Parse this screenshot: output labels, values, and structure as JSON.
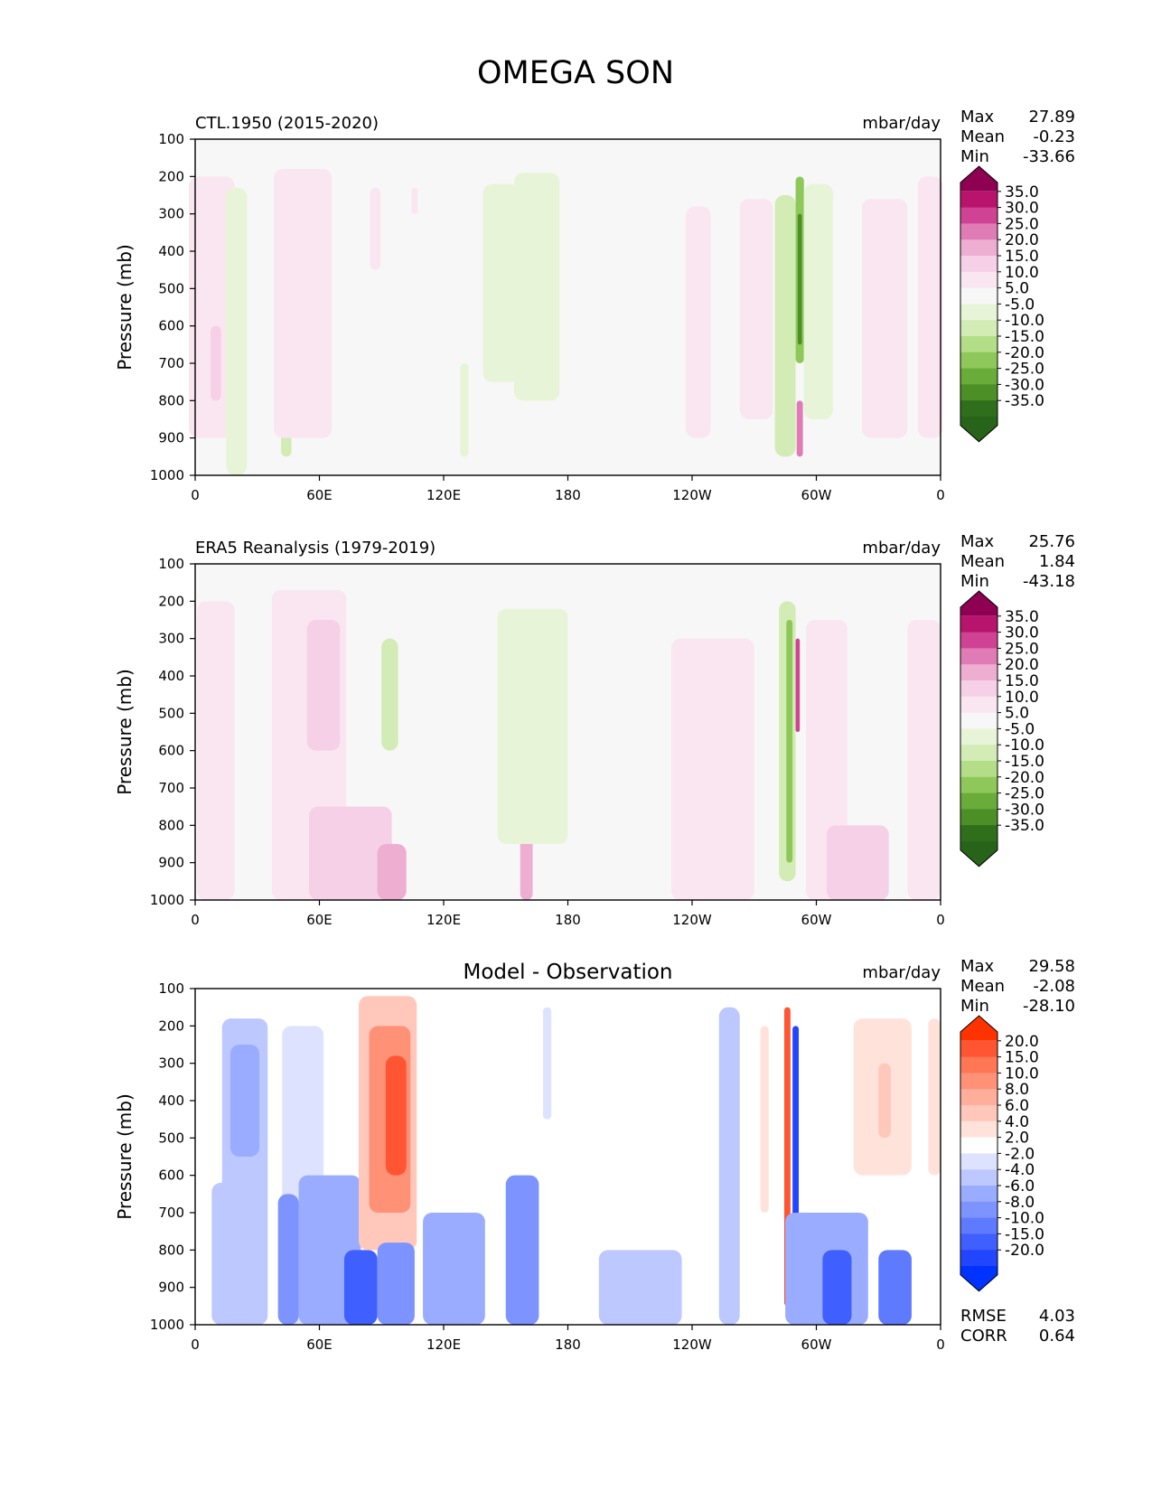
{
  "figure_title": "OMEGA SON",
  "chart_data": [
    {
      "type": "heatmap",
      "title": "CTL.1950 (2015-2020)",
      "title_position": "left",
      "units": "mbar/day",
      "xlabel": "",
      "ylabel": "Pressure (mb)",
      "x_ticks": [
        "0",
        "60E",
        "120E",
        "180",
        "120W",
        "60W",
        "0"
      ],
      "y_ticks": [
        "100",
        "200",
        "300",
        "400",
        "500",
        "600",
        "700",
        "800",
        "900",
        "1000"
      ],
      "xlim": [
        0,
        360
      ],
      "ylim": [
        1000,
        100
      ],
      "stats": [
        {
          "label": "Max",
          "value": "27.89"
        },
        {
          "label": "Mean",
          "value": "-0.23"
        },
        {
          "label": "Min",
          "value": "-33.66"
        }
      ],
      "colorbar": {
        "labels": [
          "35.0",
          "30.0",
          "25.0",
          "20.0",
          "15.0",
          "10.0",
          "5.0",
          "-5.0",
          "-10.0",
          "-15.0",
          "-20.0",
          "-25.0",
          "-30.0",
          "-35.0"
        ],
        "colors": [
          "#8e0152",
          "#b8146e",
          "#d04394",
          "#e07cb5",
          "#eeaed2",
          "#f6d0e6",
          "#fae6f0",
          "#f7f7f7",
          "#e8f4d8",
          "#d3ebb4",
          "#b3dd87",
          "#8ec85a",
          "#6aac3a",
          "#4b8f26",
          "#2f6e1a",
          "#276419"
        ]
      },
      "features": [
        {
          "kind": "pos",
          "lon": 8,
          "width": 22,
          "top": 200,
          "bottom": 900,
          "level": 1
        },
        {
          "kind": "pos",
          "lon": 10,
          "width": 5,
          "top": 600,
          "bottom": 800,
          "level": 2
        },
        {
          "kind": "neg",
          "lon": 20,
          "width": 10,
          "top": 230,
          "bottom": 1000,
          "level": 1
        },
        {
          "kind": "neg",
          "lon": 44,
          "width": 5,
          "top": 800,
          "bottom": 950,
          "level": 2
        },
        {
          "kind": "pos",
          "lon": 52,
          "width": 28,
          "top": 180,
          "bottom": 900,
          "level": 1
        },
        {
          "kind": "pos",
          "lon": 87,
          "width": 5,
          "top": 230,
          "bottom": 450,
          "level": 1
        },
        {
          "kind": "pos",
          "lon": 106,
          "width": 3,
          "top": 230,
          "bottom": 300,
          "level": 1
        },
        {
          "kind": "neg",
          "lon": 148,
          "width": 18,
          "top": 220,
          "bottom": 750,
          "level": 1
        },
        {
          "kind": "neg",
          "lon": 165,
          "width": 22,
          "top": 190,
          "bottom": 800,
          "level": 1
        },
        {
          "kind": "neg",
          "lon": 130,
          "width": 4,
          "top": 700,
          "bottom": 950,
          "level": 1
        },
        {
          "kind": "pos",
          "lon": 243,
          "width": 12,
          "top": 280,
          "bottom": 900,
          "level": 1
        },
        {
          "kind": "pos",
          "lon": 271,
          "width": 16,
          "top": 260,
          "bottom": 850,
          "level": 1
        },
        {
          "kind": "neg",
          "lon": 285,
          "width": 10,
          "top": 250,
          "bottom": 950,
          "level": 2
        },
        {
          "kind": "neg",
          "lon": 292,
          "width": 4,
          "top": 200,
          "bottom": 700,
          "level": 4
        },
        {
          "kind": "neg",
          "lon": 292,
          "width": 2,
          "top": 300,
          "bottom": 650,
          "level": 6
        },
        {
          "kind": "pos",
          "lon": 292,
          "width": 3,
          "top": 800,
          "bottom": 950,
          "level": 4
        },
        {
          "kind": "neg",
          "lon": 301,
          "width": 14,
          "top": 220,
          "bottom": 850,
          "level": 1
        },
        {
          "kind": "pos",
          "lon": 333,
          "width": 22,
          "top": 260,
          "bottom": 900,
          "level": 1
        },
        {
          "kind": "pos",
          "lon": 355,
          "width": 12,
          "top": 200,
          "bottom": 900,
          "level": 1
        }
      ]
    },
    {
      "type": "heatmap",
      "title": "ERA5 Reanalysis (1979-2019)",
      "title_position": "left",
      "units": "mbar/day",
      "xlabel": "",
      "ylabel": "Pressure (mb)",
      "x_ticks": [
        "0",
        "60E",
        "120E",
        "180",
        "120W",
        "60W",
        "0"
      ],
      "y_ticks": [
        "100",
        "200",
        "300",
        "400",
        "500",
        "600",
        "700",
        "800",
        "900",
        "1000"
      ],
      "xlim": [
        0,
        360
      ],
      "ylim": [
        1000,
        100
      ],
      "stats": [
        {
          "label": "Max",
          "value": "25.76"
        },
        {
          "label": "Mean",
          "value": "1.84"
        },
        {
          "label": "Min",
          "value": "-43.18"
        }
      ],
      "colorbar": {
        "labels": [
          "35.0",
          "30.0",
          "25.0",
          "20.0",
          "15.0",
          "10.0",
          "5.0",
          "-5.0",
          "-10.0",
          "-15.0",
          "-20.0",
          "-25.0",
          "-30.0",
          "-35.0"
        ],
        "colors": [
          "#8e0152",
          "#b8146e",
          "#d04394",
          "#e07cb5",
          "#eeaed2",
          "#f6d0e6",
          "#fae6f0",
          "#f7f7f7",
          "#e8f4d8",
          "#d3ebb4",
          "#b3dd87",
          "#8ec85a",
          "#6aac3a",
          "#4b8f26",
          "#2f6e1a",
          "#276419"
        ]
      },
      "features": [
        {
          "kind": "pos",
          "lon": 10,
          "width": 18,
          "top": 200,
          "bottom": 1000,
          "level": 1
        },
        {
          "kind": "pos",
          "lon": 55,
          "width": 36,
          "top": 170,
          "bottom": 1000,
          "level": 1
        },
        {
          "kind": "pos",
          "lon": 62,
          "width": 16,
          "top": 250,
          "bottom": 600,
          "level": 2
        },
        {
          "kind": "pos",
          "lon": 75,
          "width": 40,
          "top": 750,
          "bottom": 1000,
          "level": 2
        },
        {
          "kind": "pos",
          "lon": 95,
          "width": 14,
          "top": 850,
          "bottom": 1000,
          "level": 3
        },
        {
          "kind": "pos",
          "lon": 160,
          "width": 6,
          "top": 800,
          "bottom": 1000,
          "level": 3
        },
        {
          "kind": "neg",
          "lon": 94,
          "width": 8,
          "top": 300,
          "bottom": 600,
          "level": 2
        },
        {
          "kind": "neg",
          "lon": 163,
          "width": 34,
          "top": 220,
          "bottom": 850,
          "level": 1
        },
        {
          "kind": "pos",
          "lon": 250,
          "width": 40,
          "top": 300,
          "bottom": 1000,
          "level": 1
        },
        {
          "kind": "neg",
          "lon": 286,
          "width": 8,
          "top": 200,
          "bottom": 950,
          "level": 2
        },
        {
          "kind": "neg",
          "lon": 287,
          "width": 3,
          "top": 250,
          "bottom": 900,
          "level": 4
        },
        {
          "kind": "pos",
          "lon": 291,
          "width": 2,
          "top": 300,
          "bottom": 550,
          "level": 5
        },
        {
          "kind": "pos",
          "lon": 305,
          "width": 20,
          "top": 250,
          "bottom": 1000,
          "level": 1
        },
        {
          "kind": "pos",
          "lon": 320,
          "width": 30,
          "top": 800,
          "bottom": 1000,
          "level": 2
        },
        {
          "kind": "pos",
          "lon": 352,
          "width": 16,
          "top": 250,
          "bottom": 1000,
          "level": 1
        }
      ]
    },
    {
      "type": "heatmap",
      "title": "Model - Observation",
      "title_position": "center",
      "units": "mbar/day",
      "xlabel": "",
      "ylabel": "Pressure (mb)",
      "x_ticks": [
        "0",
        "60E",
        "120E",
        "180",
        "120W",
        "60W",
        "0"
      ],
      "y_ticks": [
        "100",
        "200",
        "300",
        "400",
        "500",
        "600",
        "700",
        "800",
        "900",
        "1000"
      ],
      "xlim": [
        0,
        360
      ],
      "ylim": [
        1000,
        100
      ],
      "stats": [
        {
          "label": "Max",
          "value": "29.58"
        },
        {
          "label": "Mean",
          "value": "-2.08"
        },
        {
          "label": "Min",
          "value": "-28.10"
        }
      ],
      "extra_stats": [
        {
          "label": "RMSE",
          "value": "4.03"
        },
        {
          "label": "CORR",
          "value": "0.64"
        }
      ],
      "colorbar": {
        "labels": [
          "20.0",
          "15.0",
          "10.0",
          "8.0",
          "6.0",
          "4.0",
          "2.0",
          "-2.0",
          "-4.0",
          "-6.0",
          "-8.0",
          "-10.0",
          "-15.0",
          "-20.0"
        ],
        "colors": [
          "#ff3300",
          "#ff5533",
          "#ff7755",
          "#ff9177",
          "#ffae9c",
          "#ffc8bb",
          "#ffe3db",
          "#ffffff",
          "#dde3ff",
          "#bcc8ff",
          "#9aacff",
          "#7d93ff",
          "#5e7aff",
          "#3f60ff",
          "#2246ff",
          "#0033ff"
        ]
      },
      "features": [
        {
          "kind": "neg",
          "lon": 14,
          "width": 12,
          "top": 620,
          "bottom": 1000,
          "level": 2
        },
        {
          "kind": "neg",
          "lon": 24,
          "width": 22,
          "top": 180,
          "bottom": 1000,
          "level": 2
        },
        {
          "kind": "neg",
          "lon": 24,
          "width": 14,
          "top": 250,
          "bottom": 550,
          "level": 3
        },
        {
          "kind": "neg",
          "lon": 52,
          "width": 20,
          "top": 200,
          "bottom": 1000,
          "level": 1
        },
        {
          "kind": "neg",
          "lon": 45,
          "width": 10,
          "top": 650,
          "bottom": 1000,
          "level": 4
        },
        {
          "kind": "neg",
          "lon": 65,
          "width": 30,
          "top": 600,
          "bottom": 1000,
          "level": 3
        },
        {
          "kind": "neg",
          "lon": 80,
          "width": 16,
          "top": 800,
          "bottom": 1000,
          "level": 6
        },
        {
          "kind": "pos",
          "lon": 93,
          "width": 28,
          "top": 120,
          "bottom": 800,
          "level": 2
        },
        {
          "kind": "pos",
          "lon": 94,
          "width": 20,
          "top": 200,
          "bottom": 700,
          "level": 4
        },
        {
          "kind": "pos",
          "lon": 97,
          "width": 10,
          "top": 280,
          "bottom": 600,
          "level": 6
        },
        {
          "kind": "neg",
          "lon": 97,
          "width": 18,
          "top": 780,
          "bottom": 1000,
          "level": 4
        },
        {
          "kind": "neg",
          "lon": 125,
          "width": 30,
          "top": 700,
          "bottom": 1000,
          "level": 3
        },
        {
          "kind": "neg",
          "lon": 158,
          "width": 16,
          "top": 600,
          "bottom": 1000,
          "level": 4
        },
        {
          "kind": "neg",
          "lon": 170,
          "width": 4,
          "top": 150,
          "bottom": 450,
          "level": 1
        },
        {
          "kind": "neg",
          "lon": 215,
          "width": 40,
          "top": 800,
          "bottom": 1000,
          "level": 2
        },
        {
          "kind": "neg",
          "lon": 258,
          "width": 10,
          "top": 150,
          "bottom": 1000,
          "level": 2
        },
        {
          "kind": "pos",
          "lon": 275,
          "width": 4,
          "top": 200,
          "bottom": 700,
          "level": 1
        },
        {
          "kind": "pos",
          "lon": 286,
          "width": 3,
          "top": 150,
          "bottom": 950,
          "level": 6
        },
        {
          "kind": "neg",
          "lon": 290,
          "width": 3,
          "top": 200,
          "bottom": 750,
          "level": 7
        },
        {
          "kind": "pos",
          "lon": 291,
          "width": 3,
          "top": 800,
          "bottom": 920,
          "level": 5
        },
        {
          "kind": "neg",
          "lon": 305,
          "width": 40,
          "top": 700,
          "bottom": 1000,
          "level": 3
        },
        {
          "kind": "neg",
          "lon": 310,
          "width": 14,
          "top": 800,
          "bottom": 1000,
          "level": 6
        },
        {
          "kind": "neg",
          "lon": 338,
          "width": 16,
          "top": 800,
          "bottom": 1000,
          "level": 5
        },
        {
          "kind": "pos",
          "lon": 332,
          "width": 28,
          "top": 180,
          "bottom": 600,
          "level": 1
        },
        {
          "kind": "pos",
          "lon": 333,
          "width": 6,
          "top": 300,
          "bottom": 500,
          "level": 2
        },
        {
          "kind": "pos",
          "lon": 357,
          "width": 6,
          "top": 180,
          "bottom": 600,
          "level": 1
        }
      ]
    }
  ]
}
